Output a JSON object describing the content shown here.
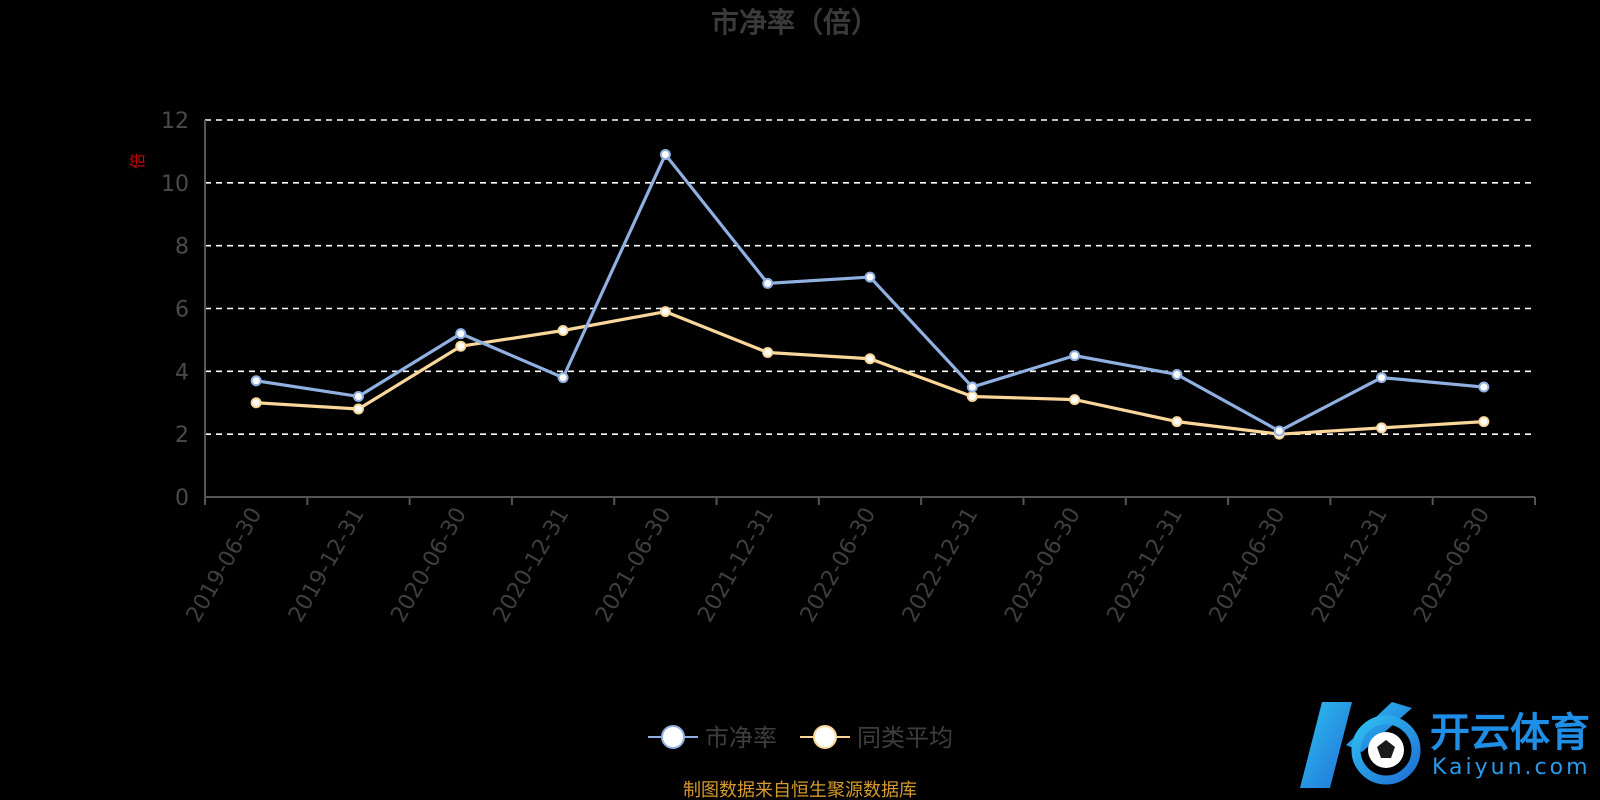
{
  "chart_data": {
    "type": "line",
    "title": "市净率（倍）",
    "ylabel": "",
    "y_unit_label": "倍",
    "xlabel": "",
    "ylim": [
      0,
      12
    ],
    "yticks": [
      0,
      2,
      4,
      6,
      8,
      10,
      12
    ],
    "grid": true,
    "legend_position": "bottom-center",
    "categories": [
      "2019-06-30",
      "2019-12-31",
      "2020-06-30",
      "2020-12-31",
      "2021-06-30",
      "2021-12-31",
      "2022-06-30",
      "2022-12-31",
      "2023-06-30",
      "2023-12-31",
      "2024-06-30",
      "2024-12-31",
      "2025-06-30"
    ],
    "series": [
      {
        "name": "市净率",
        "color": "#8fb0e0",
        "values": [
          3.7,
          3.2,
          5.2,
          3.8,
          10.9,
          6.8,
          7.0,
          3.5,
          4.5,
          3.9,
          2.1,
          3.8,
          3.5
        ]
      },
      {
        "name": "同类平均",
        "color": "#f9d69a",
        "values": [
          3.0,
          2.8,
          4.8,
          5.3,
          5.9,
          4.6,
          4.4,
          3.2,
          3.1,
          2.4,
          2.0,
          2.2,
          2.4
        ]
      }
    ],
    "source_note": "制图数据来自恒生聚源数据库"
  },
  "watermark": {
    "logo_text": "开云体育",
    "logo_sub": "Kaiyun.com",
    "colors": [
      "#1f8ee6",
      "#2fc0f0"
    ]
  },
  "colors": {
    "background": "#000000",
    "axis": "#555555",
    "grid": "#ffffff"
  }
}
